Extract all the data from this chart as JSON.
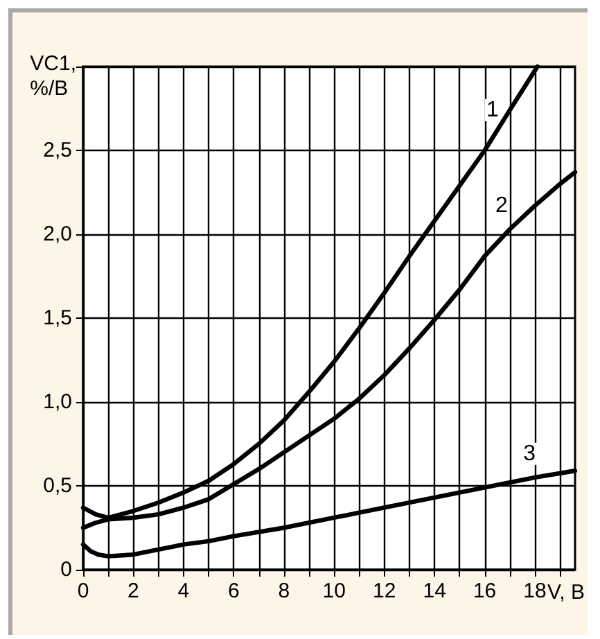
{
  "chart_data": {
    "type": "line",
    "xlabel": "V, B",
    "ylabel": "VC1,\n%/B",
    "xlim": [
      0,
      19.6
    ],
    "ylim": [
      0,
      3
    ],
    "xticks": [
      0,
      {
        "value": 1,
        "label": null
      },
      2,
      {
        "value": 3,
        "label": null
      },
      4,
      {
        "value": 5,
        "label": null
      },
      6,
      {
        "value": 7,
        "label": null
      },
      8,
      {
        "value": 9,
        "label": null
      },
      10,
      {
        "value": 11,
        "label": null
      },
      12,
      {
        "value": 13,
        "label": null
      },
      14,
      {
        "value": 15,
        "label": null
      },
      16,
      {
        "value": 17,
        "label": null
      },
      18,
      {
        "value": 19,
        "label": null
      }
    ],
    "yticks": [
      0,
      {
        "value": 0.5,
        "label": "0,5"
      },
      {
        "value": 1,
        "label": "1,0"
      },
      {
        "value": 1.5,
        "label": "1,5"
      },
      {
        "value": 2,
        "label": "2,0"
      },
      {
        "value": 2.5,
        "label": "2,5"
      },
      {
        "value": 3,
        "label": null
      }
    ],
    "grid": true,
    "marker": "none",
    "line_style": "solid",
    "series": [
      {
        "name": "1",
        "color": "#000000",
        "x": [
          0,
          0.5,
          1,
          2,
          3,
          4,
          5,
          6,
          7,
          8,
          9,
          10,
          11,
          12,
          13,
          14,
          15,
          16,
          17,
          18.1
        ],
        "values": [
          0.37,
          0.33,
          0.31,
          0.35,
          0.4,
          0.46,
          0.53,
          0.63,
          0.75,
          0.89,
          1.06,
          1.24,
          1.44,
          1.65,
          1.87,
          2.08,
          2.29,
          2.5,
          2.74,
          3.0
        ]
      },
      {
        "name": "2",
        "color": "#000000",
        "x": [
          0,
          0.5,
          1,
          2,
          3,
          4,
          5,
          6,
          7,
          8,
          9,
          10,
          11,
          12,
          13,
          14,
          15,
          16,
          17,
          18,
          19,
          19.6
        ],
        "values": [
          0.25,
          0.28,
          0.3,
          0.31,
          0.33,
          0.37,
          0.42,
          0.51,
          0.6,
          0.7,
          0.8,
          0.9,
          1.02,
          1.16,
          1.32,
          1.49,
          1.67,
          1.87,
          2.03,
          2.17,
          2.3,
          2.37
        ]
      },
      {
        "name": "3",
        "color": "#000000",
        "x": [
          0,
          0.3,
          0.6,
          1,
          2,
          3,
          4,
          5,
          6,
          8,
          10,
          12,
          14,
          16,
          18,
          19.6
        ],
        "values": [
          0.15,
          0.11,
          0.09,
          0.08,
          0.09,
          0.12,
          0.15,
          0.17,
          0.2,
          0.25,
          0.31,
          0.37,
          0.43,
          0.49,
          0.55,
          0.59
        ]
      }
    ]
  }
}
